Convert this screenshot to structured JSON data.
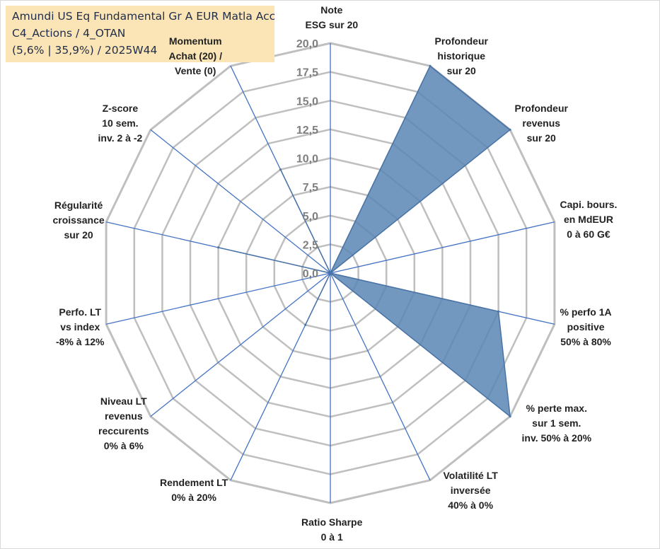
{
  "title_lines": [
    "Amundi US Eq Fundamental Gr A EUR Matla Acc",
    "C4_Actions / 4_OTAN",
    "(5,6% | 35,9%) / 2025W44"
  ],
  "chart_data": {
    "type": "radar",
    "title": "Amundi US Eq Fundamental Gr A EUR Matla Acc C4_Actions / 4_OTAN (5,6% | 35,9%) / 2025W44",
    "rlim": [
      0,
      20
    ],
    "r_ticks": [
      "0,0",
      "2,5",
      "5,0",
      "7,5",
      "10,0",
      "12,5",
      "15,0",
      "17,5",
      "20,0"
    ],
    "grid": true,
    "colors": {
      "fill": "#5b86b5",
      "stroke": "#4a73a5",
      "spoke": "#4472c4",
      "grid": "#bfbfbf"
    },
    "axes": [
      {
        "label_lines": [
          "Note",
          "ESG sur 20"
        ],
        "value": 0
      },
      {
        "label_lines": [
          "Profondeur",
          "historique",
          "sur 20"
        ],
        "value": 20
      },
      {
        "label_lines": [
          "Profondeur",
          "revenus",
          "sur 20"
        ],
        "value": 20
      },
      {
        "label_lines": [
          "Capi. bours.",
          "en MdEUR",
          "0 à 60 G€"
        ],
        "value": 0
      },
      {
        "label_lines": [
          "% perfo 1A",
          "positive",
          "50% à 80%"
        ],
        "value": 15
      },
      {
        "label_lines": [
          "% perte max.",
          "sur 1 sem.",
          "inv. 50% à 20%"
        ],
        "value": 20
      },
      {
        "label_lines": [
          "Volatilité LT",
          "inversée",
          "40% à 0%"
        ],
        "value": 0
      },
      {
        "label_lines": [
          "Ratio Sharpe",
          "0 à 1"
        ],
        "value": 0
      },
      {
        "label_lines": [
          "Rendement LT",
          "0% à 20%"
        ],
        "value": 5
      },
      {
        "label_lines": [
          "Niveau LT",
          "revenus",
          "reccurents",
          "0% à 6%"
        ],
        "value": 0
      },
      {
        "label_lines": [
          "Perfo. LT",
          "vs index",
          "-8% à 12%"
        ],
        "value": 0
      },
      {
        "label_lines": [
          "Régularité",
          "croissance",
          "sur 20"
        ],
        "value": 10
      },
      {
        "label_lines": [
          "Z-score",
          "10 sem.",
          "inv. 2 à -2"
        ],
        "value": 0
      },
      {
        "label_lines": [
          "Momentum",
          "Achat (20) /",
          "Vente (0)"
        ],
        "value": 10,
        "faded_lines": 2
      }
    ]
  }
}
